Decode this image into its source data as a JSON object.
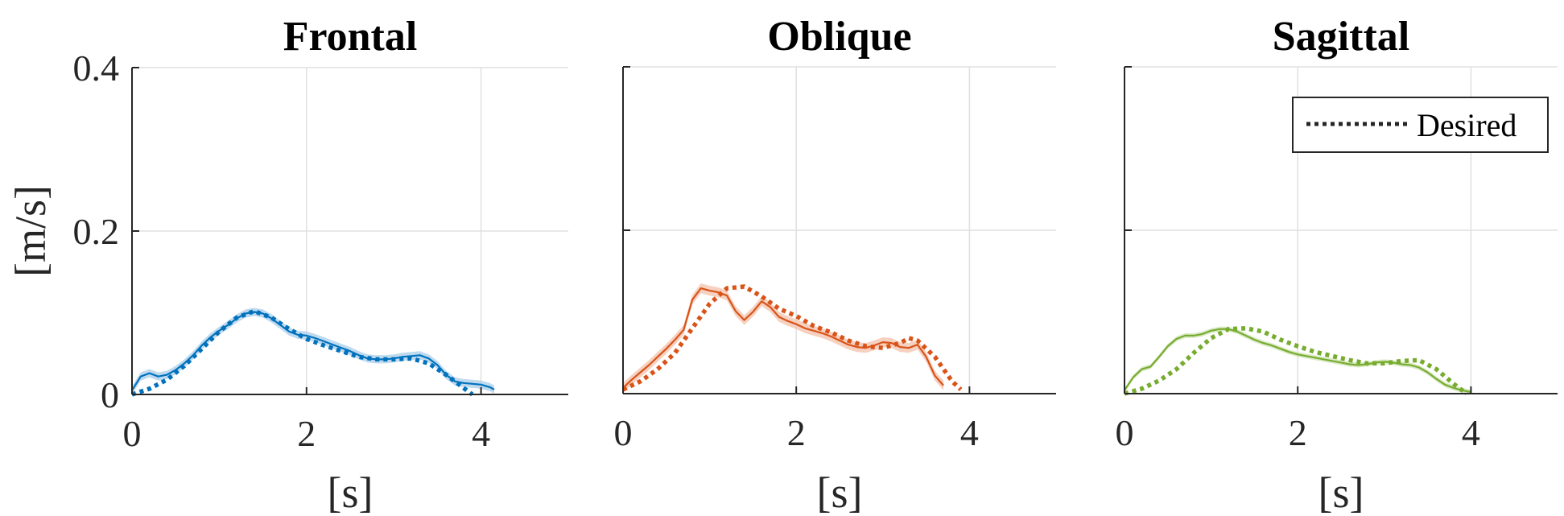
{
  "chart_data": [
    {
      "type": "line",
      "title": "Frontal",
      "xlabel": "[s]",
      "ylabel": "[m/s]",
      "xlim": [
        0,
        5
      ],
      "ylim": [
        0,
        0.4
      ],
      "xticks": [
        0,
        2,
        4
      ],
      "xtick_labels": [
        "0",
        "2",
        "4"
      ],
      "yticks": [
        0,
        0.2,
        0.4
      ],
      "ytick_labels": [
        "0",
        "0.2",
        "0.4"
      ],
      "grid": true,
      "color": "#0072BD",
      "band_color": "#a9cdea",
      "series": [
        {
          "style": "solid",
          "x": [
            0,
            0.1,
            0.2,
            0.3,
            0.4,
            0.5,
            0.6,
            0.7,
            0.8,
            0.9,
            1.0,
            1.1,
            1.2,
            1.3,
            1.4,
            1.5,
            1.6,
            1.7,
            1.8,
            1.9,
            2.0,
            2.1,
            2.2,
            2.3,
            2.4,
            2.5,
            2.6,
            2.7,
            2.8,
            2.9,
            3.0,
            3.1,
            3.2,
            3.3,
            3.4,
            3.5,
            3.6,
            3.7,
            3.8,
            3.9,
            4.0,
            4.1,
            4.15
          ],
          "y": [
            0.005,
            0.022,
            0.026,
            0.022,
            0.024,
            0.03,
            0.038,
            0.048,
            0.06,
            0.07,
            0.078,
            0.085,
            0.093,
            0.099,
            0.101,
            0.099,
            0.093,
            0.085,
            0.077,
            0.073,
            0.072,
            0.069,
            0.065,
            0.061,
            0.057,
            0.053,
            0.048,
            0.044,
            0.043,
            0.043,
            0.044,
            0.046,
            0.047,
            0.048,
            0.044,
            0.036,
            0.024,
            0.016,
            0.014,
            0.013,
            0.012,
            0.009,
            0.006
          ],
          "band": 0.005
        },
        {
          "name": "Desired",
          "style": "dotted",
          "x": [
            0,
            0.2,
            0.4,
            0.6,
            0.8,
            1.0,
            1.2,
            1.4,
            1.6,
            1.8,
            2.0,
            2.2,
            2.4,
            2.6,
            2.8,
            3.0,
            3.2,
            3.4,
            3.6,
            3.8,
            3.9
          ],
          "y": [
            0,
            0.007,
            0.018,
            0.035,
            0.056,
            0.077,
            0.094,
            0.102,
            0.094,
            0.08,
            0.068,
            0.06,
            0.053,
            0.046,
            0.043,
            0.043,
            0.044,
            0.038,
            0.024,
            0.008,
            0
          ]
        }
      ]
    },
    {
      "type": "line",
      "title": "Oblique",
      "xlabel": "[s]",
      "ylabel": "",
      "xlim": [
        0,
        5
      ],
      "ylim": [
        0,
        0.4
      ],
      "xticks": [
        0,
        2,
        4
      ],
      "xtick_labels": [
        "0",
        "2",
        "4"
      ],
      "yticks": [
        0,
        0.2,
        0.4
      ],
      "ytick_labels": [],
      "grid": true,
      "color": "#D95319",
      "band_color": "#f3c2ab",
      "series": [
        {
          "style": "solid",
          "x": [
            0,
            0.1,
            0.2,
            0.3,
            0.4,
            0.5,
            0.6,
            0.7,
            0.8,
            0.9,
            1.0,
            1.1,
            1.2,
            1.3,
            1.4,
            1.5,
            1.6,
            1.7,
            1.8,
            1.9,
            2.0,
            2.1,
            2.2,
            2.3,
            2.4,
            2.5,
            2.6,
            2.7,
            2.8,
            2.9,
            3.0,
            3.1,
            3.2,
            3.3,
            3.4,
            3.5,
            3.6,
            3.7
          ],
          "y": [
            0.007,
            0.017,
            0.026,
            0.035,
            0.045,
            0.055,
            0.066,
            0.078,
            0.115,
            0.129,
            0.126,
            0.124,
            0.12,
            0.101,
            0.09,
            0.1,
            0.113,
            0.106,
            0.094,
            0.089,
            0.085,
            0.08,
            0.077,
            0.074,
            0.07,
            0.065,
            0.06,
            0.057,
            0.056,
            0.059,
            0.063,
            0.062,
            0.057,
            0.056,
            0.06,
            0.045,
            0.022,
            0.01
          ],
          "band": 0.006
        },
        {
          "name": "Desired",
          "style": "dotted",
          "x": [
            0,
            0.2,
            0.4,
            0.6,
            0.8,
            1.0,
            1.2,
            1.4,
            1.6,
            1.8,
            2.0,
            2.2,
            2.4,
            2.6,
            2.8,
            3.0,
            3.2,
            3.3,
            3.4,
            3.6,
            3.8,
            3.9
          ],
          "y": [
            0.005,
            0.015,
            0.03,
            0.05,
            0.08,
            0.11,
            0.129,
            0.131,
            0.119,
            0.104,
            0.095,
            0.083,
            0.075,
            0.065,
            0.058,
            0.056,
            0.062,
            0.068,
            0.065,
            0.045,
            0.015,
            0.005
          ]
        }
      ]
    },
    {
      "type": "line",
      "title": "Sagittal",
      "xlabel": "[s]",
      "ylabel": "",
      "xlim": [
        0,
        5
      ],
      "ylim": [
        0,
        0.4
      ],
      "xticks": [
        0,
        2,
        4
      ],
      "xtick_labels": [
        "0",
        "2",
        "4"
      ],
      "yticks": [
        0,
        0.2,
        0.4
      ],
      "ytick_labels": [],
      "grid": true,
      "legend": "top-right",
      "color": "#77AC30",
      "band_color": "#cfe3b3",
      "series": [
        {
          "style": "solid",
          "x": [
            0,
            0.1,
            0.2,
            0.3,
            0.4,
            0.5,
            0.6,
            0.7,
            0.8,
            0.9,
            1.0,
            1.1,
            1.2,
            1.3,
            1.4,
            1.5,
            1.6,
            1.7,
            1.8,
            1.9,
            2.0,
            2.1,
            2.2,
            2.3,
            2.4,
            2.5,
            2.6,
            2.7,
            2.8,
            2.9,
            3.0,
            3.1,
            3.2,
            3.3,
            3.4,
            3.5,
            3.6,
            3.7,
            3.8,
            3.9,
            4.0
          ],
          "y": [
            0.004,
            0.02,
            0.03,
            0.033,
            0.045,
            0.058,
            0.067,
            0.071,
            0.071,
            0.073,
            0.077,
            0.079,
            0.079,
            0.076,
            0.071,
            0.066,
            0.062,
            0.059,
            0.055,
            0.051,
            0.048,
            0.046,
            0.044,
            0.042,
            0.04,
            0.038,
            0.036,
            0.035,
            0.036,
            0.038,
            0.039,
            0.038,
            0.036,
            0.035,
            0.032,
            0.026,
            0.018,
            0.011,
            0.007,
            0.004,
            0.002
          ],
          "band": 0.003
        },
        {
          "name": "Desired",
          "style": "dotted",
          "x": [
            0,
            0.2,
            0.4,
            0.6,
            0.8,
            1.0,
            1.2,
            1.4,
            1.6,
            1.8,
            2.0,
            2.2,
            2.4,
            2.6,
            2.8,
            3.0,
            3.2,
            3.4,
            3.6,
            3.8,
            3.95
          ],
          "y": [
            0,
            0.006,
            0.016,
            0.03,
            0.05,
            0.068,
            0.079,
            0.08,
            0.076,
            0.066,
            0.058,
            0.051,
            0.046,
            0.041,
            0.037,
            0.037,
            0.04,
            0.041,
            0.03,
            0.012,
            0
          ]
        }
      ]
    }
  ]
}
